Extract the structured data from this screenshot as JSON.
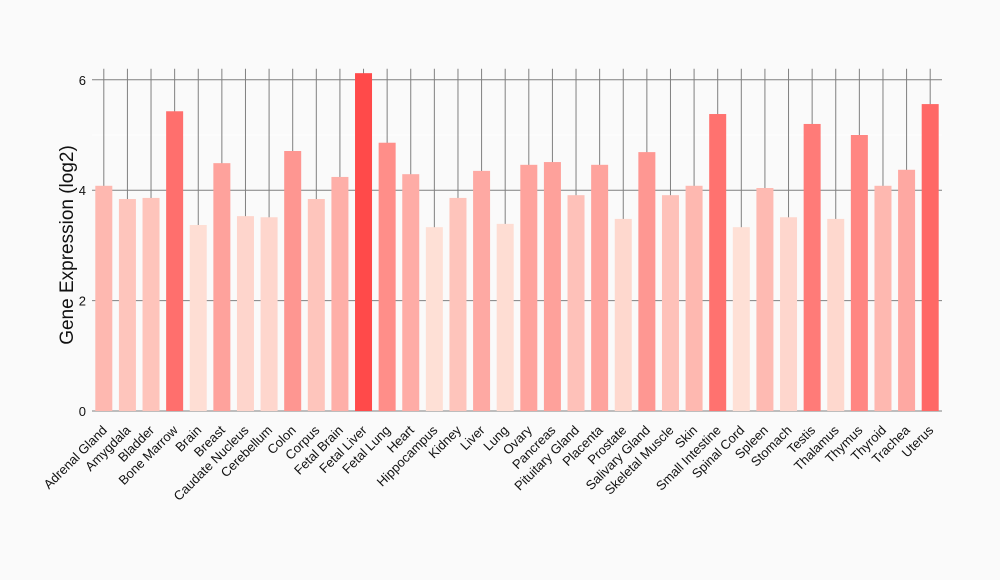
{
  "chart_data": {
    "type": "bar",
    "title": "",
    "xlabel": "",
    "ylabel": "Gene Expression (log2)",
    "ylim": [
      0,
      6.5
    ],
    "yticks": [
      0,
      2,
      4,
      6
    ],
    "grid": true,
    "categories": [
      "Adrenal Gland",
      "Amygdala",
      "Bladder",
      "Bone Marrow",
      "Brain",
      "Breast",
      "Caudate Nucleus",
      "Cerebellum",
      "Colon",
      "Corpus",
      "Fetal Brain",
      "Fetal Liver",
      "Fetal Lung",
      "Heart",
      "Hippocampus",
      "Kidney",
      "Liver",
      "Lung",
      "Ovary",
      "Pancreas",
      "Pituitary Gland",
      "Placenta",
      "Prostate",
      "Salivary Gland",
      "Skeletal Muscle",
      "Skin",
      "Small Intestine",
      "Spinal Cord",
      "Spleen",
      "Stomach",
      "Testis",
      "Thalamus",
      "Thymus",
      "Thyroid",
      "Trachea",
      "Uterus"
    ],
    "values": [
      4.08,
      3.84,
      3.86,
      5.43,
      3.37,
      4.49,
      3.53,
      3.51,
      4.71,
      3.84,
      4.24,
      6.12,
      4.86,
      4.29,
      3.33,
      3.86,
      4.35,
      3.39,
      4.46,
      4.51,
      3.91,
      4.46,
      3.48,
      4.69,
      3.91,
      4.08,
      5.38,
      3.33,
      4.04,
      3.51,
      5.2,
      3.48,
      5.0,
      4.08,
      4.37,
      5.56
    ],
    "color_low": "#fee0d6",
    "color_high": "#ff4a4a"
  }
}
